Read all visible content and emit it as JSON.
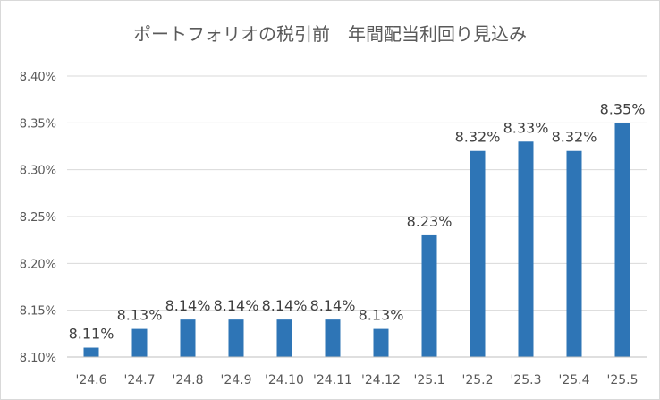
{
  "chart_data": {
    "type": "bar",
    "title": "ポートフォリオの税引前　年間配当利回り見込み",
    "xlabel": "",
    "ylabel": "",
    "categories": [
      "'24.6",
      "'24.7",
      "'24.8",
      "'24.9",
      "'24.10",
      "'24.11",
      "'24.12",
      "'25.1",
      "'25.2",
      "'25.3",
      "'25.4",
      "'25.5"
    ],
    "values": [
      8.11,
      8.13,
      8.14,
      8.14,
      8.14,
      8.14,
      8.13,
      8.23,
      8.32,
      8.33,
      8.32,
      8.35
    ],
    "data_labels": [
      "8.11%",
      "8.13%",
      "8.14%",
      "8.14%",
      "8.14%",
      "8.14%",
      "8.13%",
      "8.23%",
      "8.32%",
      "8.33%",
      "8.32%",
      "8.35%"
    ],
    "ylim": [
      8.1,
      8.4
    ],
    "yticks": [
      8.1,
      8.15,
      8.2,
      8.25,
      8.3,
      8.35,
      8.4
    ],
    "ytick_labels": [
      "8.10%",
      "8.15%",
      "8.20%",
      "8.25%",
      "8.30%",
      "8.35%",
      "8.40%"
    ],
    "grid": true,
    "legend": "none",
    "bar_color": "#2e75b6"
  }
}
